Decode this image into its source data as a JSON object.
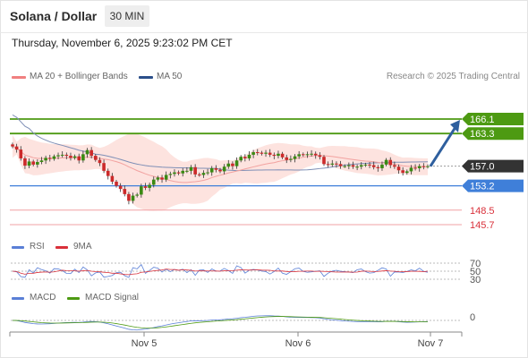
{
  "header": {
    "title": "Solana / Dollar",
    "timeframe": "30 MIN",
    "datetime": "Thursday, November 6, 2025 9:23:02 PM CET"
  },
  "legend": {
    "ma20_label": "MA 20 + Bollinger Bands",
    "ma20_color": "#f08080",
    "ma50_label": "MA 50",
    "ma50_color": "#2b4f8a",
    "credit": "Research © 2025 Trading Central"
  },
  "levels": [
    {
      "value": "166.1",
      "kind": "target",
      "color": "#4d9a12"
    },
    {
      "value": "163.3",
      "kind": "target",
      "color": "#4d9a12"
    },
    {
      "value": "157.0",
      "kind": "current",
      "color": "#333333"
    },
    {
      "value": "153.2",
      "kind": "pivot",
      "color": "#3f7fd9"
    },
    {
      "value": "148.5",
      "kind": "support",
      "color": "#d9303a"
    },
    {
      "value": "145.7",
      "kind": "support",
      "color": "#d9303a"
    }
  ],
  "rsi": {
    "label": "RSI",
    "label2": "9MA",
    "color": "#5a7fd6",
    "color2": "#d9303a",
    "levels": [
      "70",
      "50",
      "30"
    ]
  },
  "macd": {
    "label": "MACD",
    "label2": "MACD Signal",
    "color": "#5a7fd6",
    "color2": "#4d9a12",
    "zero": "0"
  },
  "xaxis": [
    "Nov 5",
    "Nov 6",
    "Nov 7"
  ],
  "chart_data": {
    "type": "candlestick",
    "ylim": [
      144,
      169
    ],
    "close": [
      160.8,
      160.2,
      158.5,
      157.1,
      157.9,
      157.3,
      157.8,
      158.1,
      158.6,
      158.4,
      158.9,
      159.1,
      159.2,
      159.0,
      158.6,
      158.9,
      158.1,
      159.3,
      160.1,
      159.0,
      158.2,
      157.6,
      156.1,
      155.1,
      154.0,
      153.2,
      152.6,
      151.6,
      150.3,
      151.3,
      151.5,
      153.1,
      152.8,
      153.4,
      154.4,
      154.8,
      154.4,
      155.3,
      155.5,
      155.8,
      155.6,
      156.1,
      156.1,
      156.8,
      155.4,
      155.3,
      155.7,
      155.8,
      156.6,
      156.3,
      156.0,
      156.9,
      157.5,
      157.0,
      158.1,
      158.8,
      158.5,
      159.2,
      159.7,
      159.6,
      159.4,
      159.6,
      159.2,
      159.0,
      159.4,
      158.7,
      158.2,
      158.4,
      158.9,
      159.3,
      159.2,
      159.3,
      159.4,
      159.1,
      158.8,
      157.4,
      157.3,
      157.5,
      157.4,
      157.0,
      157.0,
      157.2,
      156.9,
      156.9,
      157.2,
      157.3,
      157.2,
      156.8,
      156.6,
      157.3,
      158.2,
      157.2,
      156.9,
      156.2,
      155.7,
      156.0,
      156.7,
      156.6,
      157.0,
      156.9,
      157.0
    ],
    "annotations": [
      "bullish arrow toward 166.1"
    ]
  }
}
